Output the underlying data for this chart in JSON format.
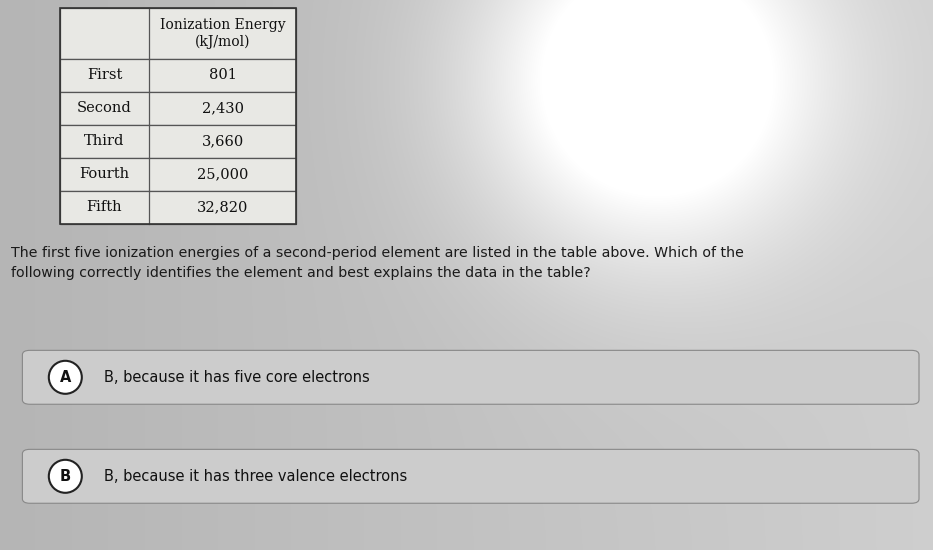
{
  "table_header_text": "Ionization Energy\n(kJ/mol)",
  "table_rows": [
    [
      "First",
      "801"
    ],
    [
      "Second",
      "2,430"
    ],
    [
      "Third",
      "3,660"
    ],
    [
      "Fourth",
      "25,000"
    ],
    [
      "Fifth",
      "32,820"
    ]
  ],
  "question_text": "The first five ionization energies of a second-period element are listed in the table above. Which of the\nfollowing correctly identifies the element and best explains the data in the table?",
  "options": [
    {
      "label": "A",
      "text": "B, because it has five core electrons"
    },
    {
      "label": "B",
      "text": "B, because it has three valence electrons"
    }
  ],
  "bg_color_left": "#b8b8b8",
  "bg_color_right": "#d8d8d8",
  "table_bg": "#e8e8e4",
  "table_border": "#555555",
  "option_box_bg": "#cccccc",
  "option_box_border": "#888888",
  "text_color": "#111111",
  "question_color": "#1a1a1a",
  "circle_bg": "#ffffff",
  "circle_border": "#222222"
}
